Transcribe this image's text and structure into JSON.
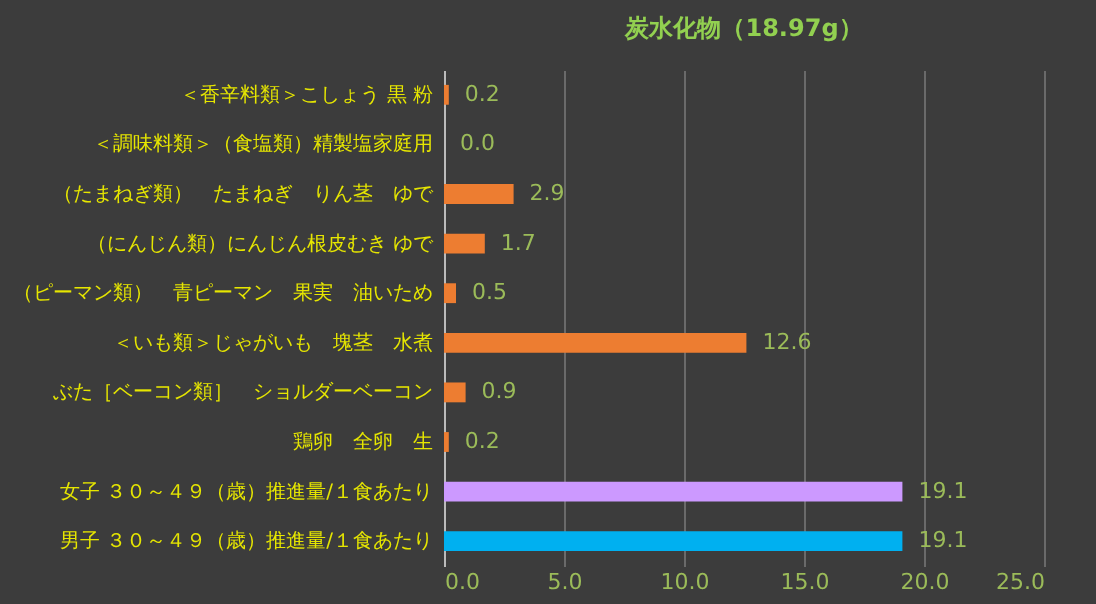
{
  "chart_data": {
    "type": "bar",
    "orientation": "horizontal",
    "title": "炭水化物（18.97g）",
    "categories": [
      "＜香辛料類＞こしょう 黒 粉",
      "＜調味料類＞（食塩類）精製塩家庭用",
      "（たまねぎ類）　たまねぎ　りん茎　ゆで",
      "（にんじん類）にんじん根皮むき ゆで",
      "（ピーマン類）　青ピーマン　果実　油いため",
      "＜いも類＞じゃがいも　塊茎　水煮",
      "ぶた［ベーコン類］　ショルダーベーコン",
      "鶏卵　全卵　生",
      "女子 ３０～４９（歳）推進量/１食あたり",
      "男子 ３０～４９（歳）推進量/１食あたり"
    ],
    "values": [
      0.2,
      0.0,
      2.9,
      1.7,
      0.5,
      12.6,
      0.9,
      0.2,
      19.1,
      19.1
    ],
    "colors": [
      "#ed7d31",
      "#ed7d31",
      "#ed7d31",
      "#ed7d31",
      "#ed7d31",
      "#ed7d31",
      "#ed7d31",
      "#ed7d31",
      "#cc99ff",
      "#00b0f0"
    ],
    "value_labels": [
      "0.2",
      "0.0",
      "2.9",
      "1.7",
      "0.5",
      "12.6",
      "0.9",
      "0.2",
      "19.1",
      "19.1"
    ],
    "xlim": [
      0,
      25
    ],
    "xticks": [
      {
        "value": 0,
        "label": "0.0"
      },
      {
        "value": 5,
        "label": "5.0"
      },
      {
        "value": 10,
        "label": "10.0"
      },
      {
        "value": 15,
        "label": "15.0"
      },
      {
        "value": 20,
        "label": "20.0"
      },
      {
        "value": 25,
        "label": "25.0"
      }
    ],
    "grid": "x"
  }
}
